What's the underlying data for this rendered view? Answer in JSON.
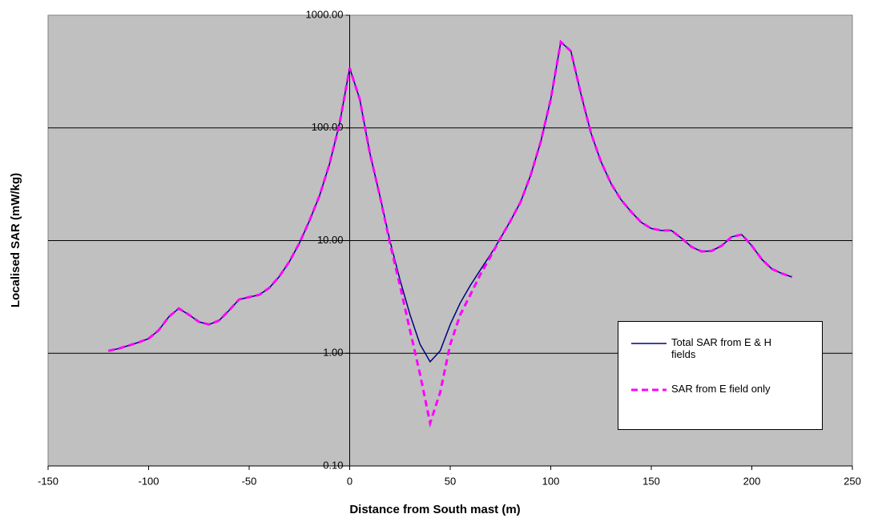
{
  "chart_data": {
    "type": "line",
    "xlabel": "Distance from South mast (m)",
    "ylabel": "Localised SAR (mW/kg)",
    "log_y": true,
    "grid": true,
    "legend": "lower right",
    "xlim": [
      -150,
      250
    ],
    "xticks": [
      -150,
      -100,
      -50,
      0,
      50,
      100,
      150,
      200,
      250
    ],
    "ylim": [
      0.1,
      1000
    ],
    "yticks": [
      {
        "value": 0.1,
        "label": "0.10"
      },
      {
        "value": 1,
        "label": "1.00"
      },
      {
        "value": 10,
        "label": "10.00"
      },
      {
        "value": 100,
        "label": "100.00"
      },
      {
        "value": 1000,
        "label": "1000.00"
      }
    ],
    "x": [
      -120,
      -115,
      -110,
      -105,
      -100,
      -95,
      -90,
      -85,
      -80,
      -75,
      -70,
      -65,
      -60,
      -55,
      -50,
      -45,
      -40,
      -35,
      -30,
      -25,
      -20,
      -15,
      -10,
      -5,
      0,
      5,
      10,
      15,
      20,
      25,
      30,
      35,
      40,
      45,
      50,
      55,
      60,
      65,
      70,
      75,
      80,
      85,
      90,
      95,
      100,
      105,
      110,
      115,
      120,
      125,
      130,
      135,
      140,
      145,
      150,
      155,
      160,
      165,
      170,
      175,
      180,
      185,
      190,
      195,
      200,
      205,
      210,
      215,
      220
    ],
    "series": [
      {
        "name": "Total SAR from E & H fields",
        "color": "#000080",
        "dash": false,
        "values": [
          1.05,
          1.1,
          1.17,
          1.25,
          1.35,
          1.6,
          2.1,
          2.5,
          2.2,
          1.9,
          1.8,
          1.95,
          2.4,
          3.0,
          3.15,
          3.3,
          3.8,
          4.8,
          6.5,
          9.5,
          15,
          25,
          48,
          110,
          340,
          180,
          60,
          25,
          10,
          4.5,
          2.2,
          1.2,
          0.84,
          1.05,
          1.8,
          2.8,
          4.0,
          5.5,
          7.5,
          10.5,
          15,
          22,
          38,
          75,
          180,
          580,
          480,
          200,
          90,
          50,
          32,
          23,
          18,
          14.5,
          12.8,
          12.3,
          12.3,
          10.5,
          8.8,
          8.0,
          8.1,
          9.0,
          10.8,
          11.3,
          9.0,
          6.8,
          5.6,
          5.1,
          4.75
        ]
      },
      {
        "name": "SAR from E field only",
        "color": "#ff00ff",
        "dash": true,
        "values": [
          1.05,
          1.1,
          1.17,
          1.25,
          1.35,
          1.6,
          2.1,
          2.5,
          2.2,
          1.9,
          1.8,
          1.95,
          2.4,
          3.0,
          3.15,
          3.3,
          3.8,
          4.8,
          6.5,
          9.5,
          15,
          25,
          48,
          110,
          340,
          180,
          60,
          25,
          9.5,
          4.0,
          1.6,
          0.65,
          0.24,
          0.45,
          1.2,
          2.2,
          3.3,
          5.0,
          7.2,
          10.5,
          15,
          22,
          38,
          75,
          180,
          580,
          480,
          200,
          90,
          50,
          32,
          23,
          18,
          14.5,
          12.8,
          12.3,
          12.3,
          10.5,
          8.8,
          8.0,
          8.1,
          9.0,
          10.8,
          11.3,
          9.0,
          6.8,
          5.6,
          5.1,
          4.75
        ]
      }
    ]
  }
}
